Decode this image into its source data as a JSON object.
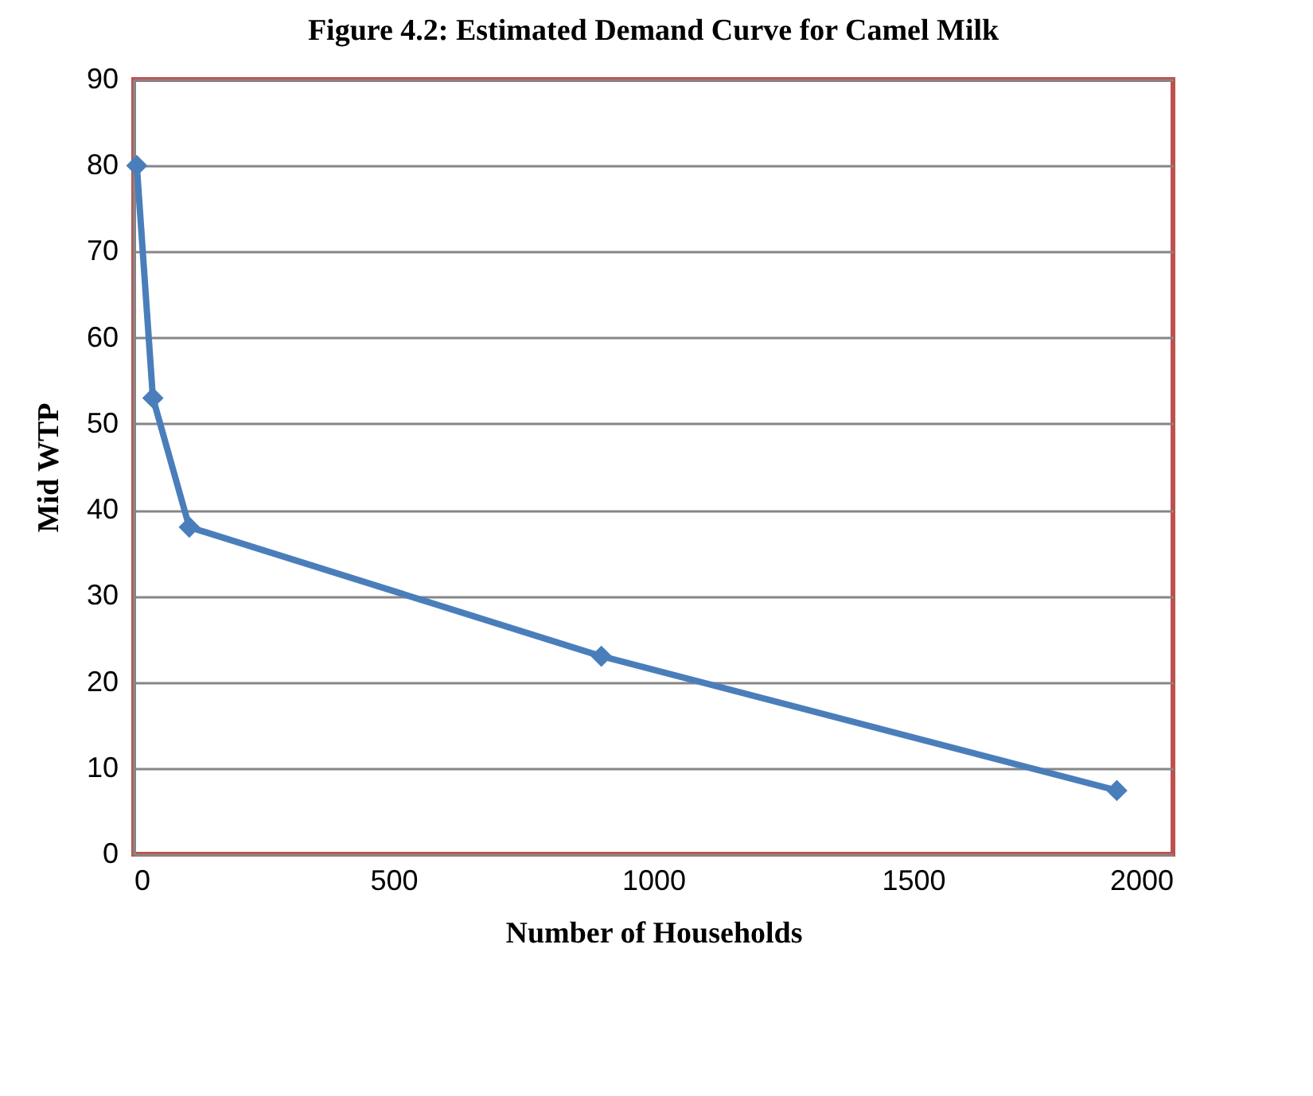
{
  "chart_data": {
    "type": "line",
    "title": "Figure  4.2:  Estimated Demand Curve for Camel Milk",
    "xlabel": "Number of Households",
    "ylabel": "Mid WTP",
    "x": [
      6,
      37,
      107,
      900,
      1892
    ],
    "series": [
      {
        "color": "#4a7ebb",
        "values": [
          80,
          53,
          38,
          23,
          7.4
        ]
      }
    ],
    "xlim": [
      0,
      2000
    ],
    "xticks": [
      0,
      500,
      1000,
      1500,
      2000
    ],
    "ylim": [
      0,
      90
    ],
    "yticks": [
      0,
      10,
      20,
      30,
      40,
      50,
      60,
      70,
      80,
      90
    ],
    "grid": "y",
    "marker": "diamond",
    "line_style": "solid",
    "legend": false
  }
}
